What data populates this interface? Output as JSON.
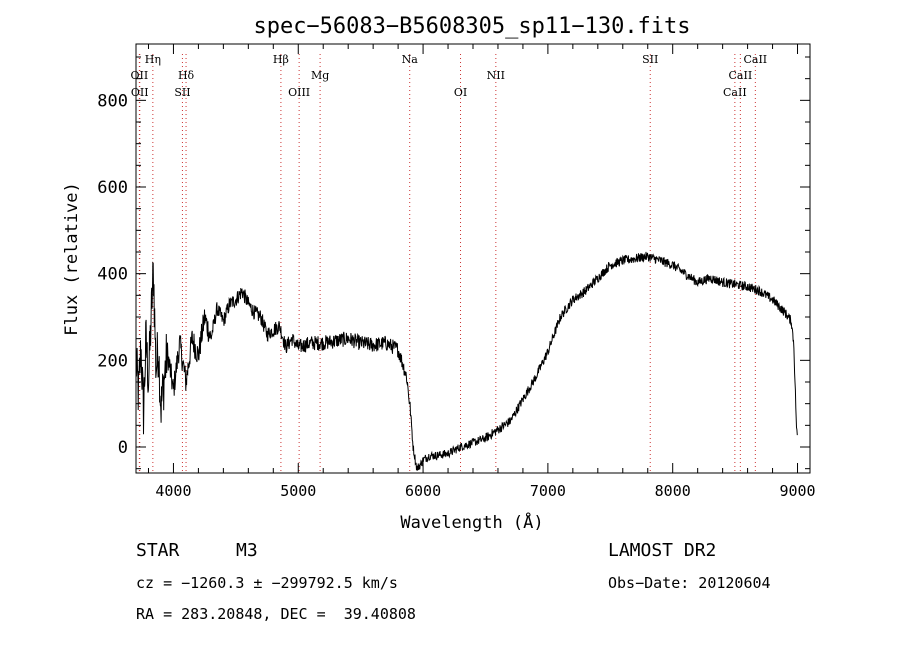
{
  "chart_data": {
    "type": "line",
    "title": "spec−56083−B5608305_sp11−130.fits",
    "xlabel": "Wavelength (Å)",
    "ylabel": "Flux (relative)",
    "xlim": [
      3700,
      9100
    ],
    "ylim": [
      -60,
      930
    ],
    "xticks": [
      4000,
      5000,
      6000,
      7000,
      8000,
      9000
    ],
    "yticks": [
      0,
      200,
      400,
      600,
      800
    ],
    "grid": false,
    "line_color": "#000000",
    "marker_color": "#cc3333",
    "lines": [
      {
        "label": "Hη",
        "x": 3835,
        "row": 0
      },
      {
        "label": "OII",
        "x": 3727,
        "row": 1
      },
      {
        "label": "OII",
        "x": 3730,
        "row": 2
      },
      {
        "label": "Hδ",
        "x": 4101,
        "row": 1
      },
      {
        "label": "SII",
        "x": 4072,
        "row": 2
      },
      {
        "label": "Hβ",
        "x": 4861,
        "row": 0
      },
      {
        "label": "Mg",
        "x": 5175,
        "row": 1
      },
      {
        "label": "OIII",
        "x": 5007,
        "row": 2
      },
      {
        "label": "Na",
        "x": 5893,
        "row": 0
      },
      {
        "label": "OI",
        "x": 6300,
        "row": 2
      },
      {
        "label": "NII",
        "x": 6583,
        "row": 1
      },
      {
        "label": "SII",
        "x": 7820,
        "row": 0
      },
      {
        "label": "CaII",
        "x": 8662,
        "row": 0
      },
      {
        "label": "CaII",
        "x": 8542,
        "row": 1
      },
      {
        "label": "CaII",
        "x": 8498,
        "row": 2
      }
    ],
    "series": [
      {
        "x": [
          3700,
          3720,
          3740,
          3760,
          3780,
          3800,
          3820,
          3840,
          3860,
          3880,
          3900,
          3950,
          4000,
          4050,
          4100,
          4150,
          4200,
          4250,
          4300,
          4350,
          4400,
          4450,
          4500,
          4550,
          4600,
          4650,
          4700,
          4750,
          4800,
          4850,
          4900,
          4950,
          5000,
          5100,
          5200,
          5300,
          5400,
          5500,
          5600,
          5700,
          5800,
          5850,
          5870,
          5900,
          5920,
          5950,
          5980,
          6000,
          6050,
          6100,
          6200,
          6300,
          6400,
          6500,
          6600,
          6700,
          6800,
          6900,
          7000,
          7100,
          7200,
          7300,
          7400,
          7500,
          7600,
          7700,
          7800,
          7900,
          8000,
          8100,
          8200,
          8300,
          8400,
          8500,
          8600,
          8700,
          8800,
          8900,
          8950,
          8970,
          8980,
          8990,
          9000
        ],
        "y": [
          200,
          120,
          230,
          80,
          250,
          150,
          290,
          410,
          180,
          230,
          90,
          220,
          130,
          240,
          150,
          250,
          210,
          300,
          250,
          320,
          290,
          330,
          340,
          360,
          330,
          310,
          300,
          260,
          270,
          280,
          230,
          250,
          230,
          240,
          240,
          245,
          250,
          240,
          235,
          240,
          225,
          180,
          160,
          80,
          0,
          -50,
          -40,
          -30,
          -20,
          -20,
          -15,
          0,
          10,
          20,
          40,
          60,
          110,
          160,
          220,
          300,
          340,
          360,
          390,
          420,
          430,
          435,
          440,
          430,
          420,
          400,
          380,
          390,
          380,
          375,
          370,
          360,
          340,
          310,
          290,
          240,
          150,
          60,
          10
        ]
      }
    ]
  },
  "footer": {
    "object_type": "STAR",
    "subclass": "M3",
    "survey": "LAMOST DR2",
    "cz": "cz = −1260.3 ± −299792.5 km/s",
    "obs_date": "Obs−Date: 20120604",
    "coords": "RA = 283.20848, DEC =  39.40808"
  }
}
